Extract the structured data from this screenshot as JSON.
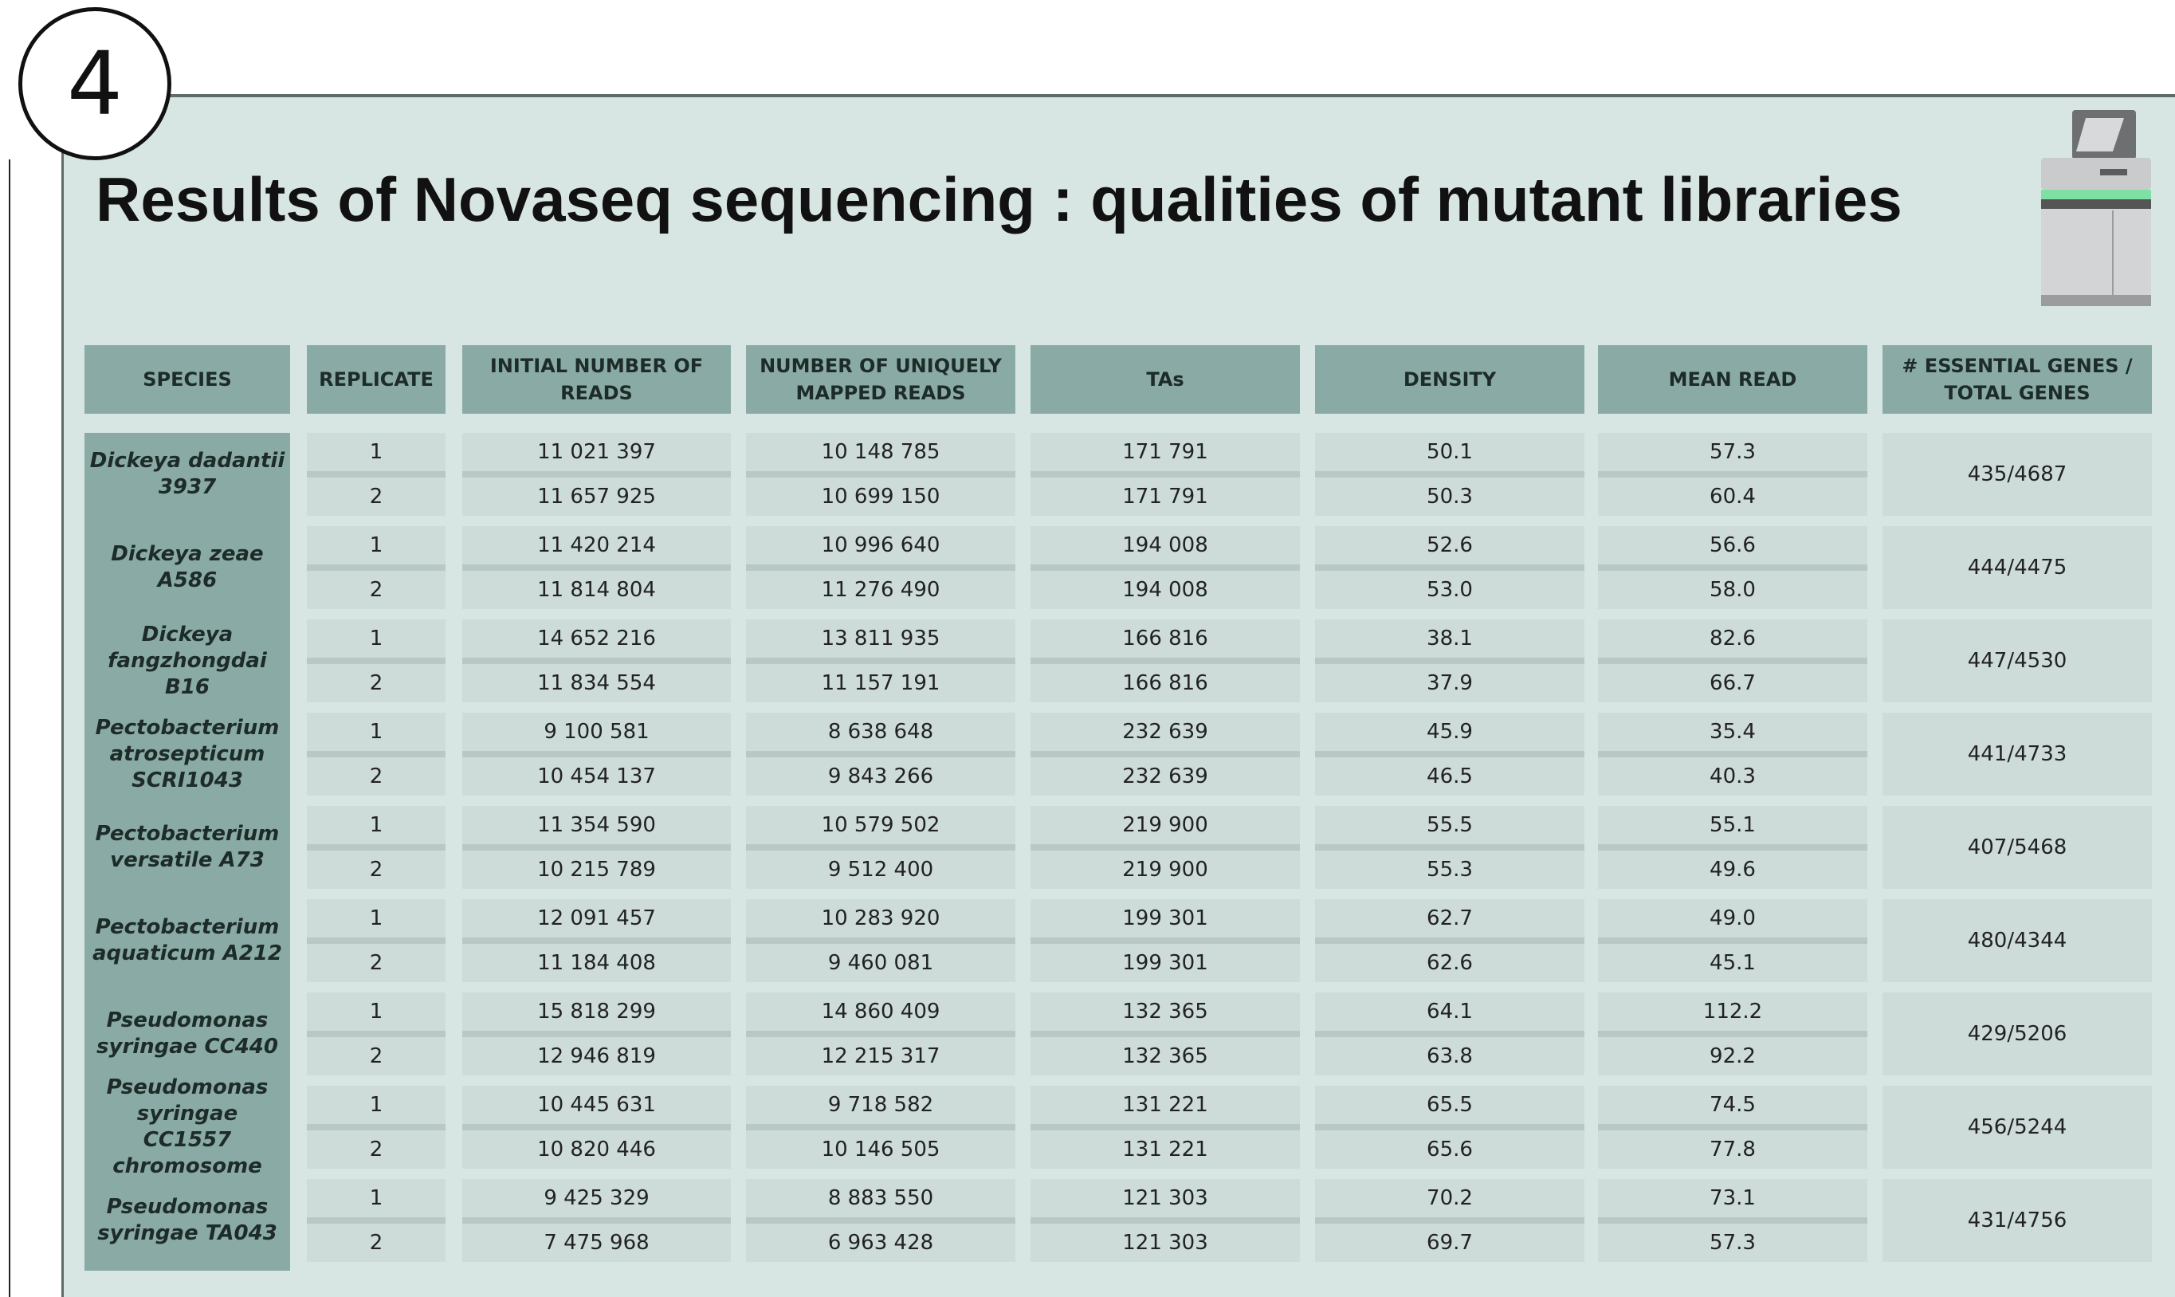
{
  "header": {
    "step": "4",
    "title": "Results of Novaseq sequencing : qualities of mutant libraries"
  },
  "table": {
    "columns": [
      "SPECIES",
      "REPLICATE",
      "INITIAL NUMBER OF READS",
      "NUMBER OF UNIQUELY MAPPED READS",
      "TAs",
      "DENSITY",
      "MEAN READ",
      "# ESSENTIAL GENES / TOTAL GENES"
    ],
    "groups": [
      {
        "species": "Dickeya dadantii 3937",
        "rows": [
          [
            "1",
            "11 021 397",
            "10 148 785",
            "171 791",
            "50.1",
            "57.3"
          ],
          [
            "2",
            "11 657 925",
            "10 699 150",
            "171 791",
            "50.3",
            "60.4"
          ]
        ],
        "essential": "435/4687"
      },
      {
        "species": "Dickeya zeae A586",
        "rows": [
          [
            "1",
            "11 420 214",
            "10 996 640",
            "194 008",
            "52.6",
            "56.6"
          ],
          [
            "2",
            "11 814 804",
            "11 276 490",
            "194 008",
            "53.0",
            "58.0"
          ]
        ],
        "essential": "444/4475"
      },
      {
        "species": "Dickeya fangzhongdai B16",
        "rows": [
          [
            "1",
            "14 652 216",
            "13 811 935",
            "166 816",
            "38.1",
            "82.6"
          ],
          [
            "2",
            "11 834 554",
            "11 157 191",
            "166 816",
            "37.9",
            "66.7"
          ]
        ],
        "essential": "447/4530"
      },
      {
        "species": "Pectobacterium atrosepticum SCRI1043",
        "rows": [
          [
            "1",
            "9 100 581",
            "8 638 648",
            "232 639",
            "45.9",
            "35.4"
          ],
          [
            "2",
            "10 454 137",
            "9 843 266",
            "232 639",
            "46.5",
            "40.3"
          ]
        ],
        "essential": "441/4733"
      },
      {
        "species": "Pectobacterium versatile A73",
        "rows": [
          [
            "1",
            "11 354 590",
            "10 579 502",
            "219 900",
            "55.5",
            "55.1"
          ],
          [
            "2",
            "10 215 789",
            "9 512 400",
            "219 900",
            "55.3",
            "49.6"
          ]
        ],
        "essential": "407/5468"
      },
      {
        "species": "Pectobacterium aquaticum A212",
        "rows": [
          [
            "1",
            "12 091 457",
            "10 283 920",
            "199 301",
            "62.7",
            "49.0"
          ],
          [
            "2",
            "11 184 408",
            "9 460 081",
            "199 301",
            "62.6",
            "45.1"
          ]
        ],
        "essential": "480/4344"
      },
      {
        "species": "Pseudomonas syringae CC440",
        "rows": [
          [
            "1",
            "15 818 299",
            "14 860 409",
            "132 365",
            "64.1",
            "112.2"
          ],
          [
            "2",
            "12 946 819",
            "12 215 317",
            "132 365",
            "63.8",
            "92.2"
          ]
        ],
        "essential": "429/5206"
      },
      {
        "species": "Pseudomonas syringae CC1557 chromosome",
        "rows": [
          [
            "1",
            "10 445 631",
            "9 718 582",
            "131 221",
            "65.5",
            "74.5"
          ],
          [
            "2",
            "10 820 446",
            "10 146 505",
            "131 221",
            "65.6",
            "77.8"
          ]
        ],
        "essential": "456/5244"
      },
      {
        "species": "Pseudomonas syringae TA043",
        "rows": [
          [
            "1",
            "9 425 329",
            "8 883 550",
            "121 303",
            "70.2",
            "73.1"
          ],
          [
            "2",
            "7 475 968",
            "6 963 428",
            "121 303",
            "69.7",
            "57.3"
          ]
        ],
        "essential": "431/4756"
      }
    ]
  }
}
